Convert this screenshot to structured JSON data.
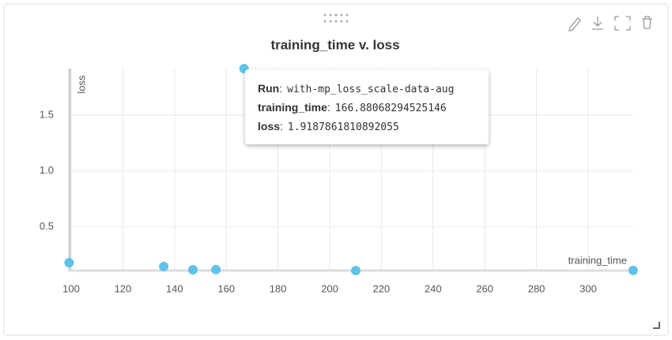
{
  "chart_data": {
    "type": "scatter",
    "title": "training_time v. loss",
    "x_label": "training_time",
    "y_label": "loss",
    "x": [
      99.2,
      135.8,
      147.1,
      156.0,
      166.88068294525146,
      210.1,
      317.4
    ],
    "y": [
      0.177,
      0.142,
      0.113,
      0.115,
      1.9187861810892055,
      0.106,
      0.108
    ],
    "color": "#5fc2e8",
    "xlim": [
      98.8,
      317.5
    ],
    "xticks": [
      100,
      120,
      140,
      160,
      180,
      200,
      220,
      240,
      260,
      280,
      300
    ],
    "ylim": [
      0.106,
      1.919
    ],
    "yticks": [
      0.5,
      {
        "value": 1,
        "label": "1.0"
      },
      1.5
    ],
    "grid": true,
    "tooltip": {
      "run_label": "Run",
      "run": "with-mp_loss_scale-data-aug",
      "point": 4
    }
  }
}
